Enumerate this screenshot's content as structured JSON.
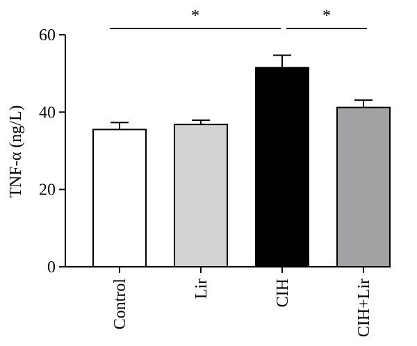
{
  "chart_data": {
    "type": "bar",
    "title": "",
    "xlabel": "",
    "ylabel": "TNF-α (ng/L)",
    "ylim": [
      0,
      60
    ],
    "yticks": [
      0,
      20,
      40,
      60
    ],
    "grid": false,
    "categories": [
      "Control",
      "Lir",
      "CIH",
      "CIH+Lir"
    ],
    "values": [
      35.5,
      36.8,
      51.5,
      41.2
    ],
    "errors": [
      1.8,
      1.1,
      3.2,
      1.9
    ],
    "bar_colors": [
      "#ffffff",
      "#d3d3d3",
      "#000000",
      "#a2a2a4"
    ],
    "significance": [
      {
        "from": "Control",
        "to": "CIH",
        "label": "*"
      },
      {
        "from": "CIH",
        "to": "CIH+Lir",
        "label": "*"
      }
    ]
  }
}
